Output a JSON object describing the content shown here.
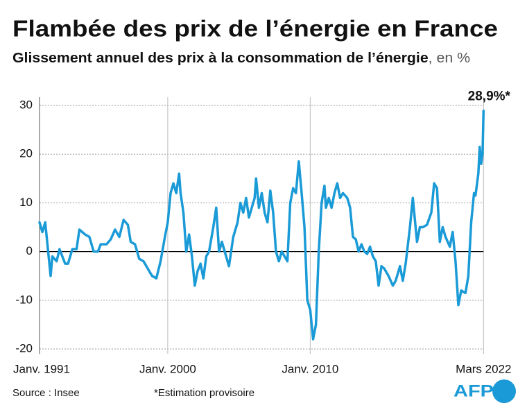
{
  "chart_data": {
    "type": "line",
    "title": "Flambée des prix de l’énergie en France",
    "subtitle": "Glissement annuel des prix à la consommation de l’énergie",
    "subtitle_unit": ", en %",
    "annotation": "28,9%*",
    "source": "Source : Insee",
    "note": "*Estimation provisoire",
    "logo": "AFP",
    "color": "#1a9ad6",
    "xlim": [
      1991,
      2022.2
    ],
    "ylim": [
      -20,
      30
    ],
    "yticks": [
      -20,
      -10,
      0,
      10,
      20,
      30
    ],
    "xticks": [
      {
        "value": 1991,
        "label": "Janv. 1991"
      },
      {
        "value": 2000,
        "label": "Janv. 2000"
      },
      {
        "value": 2010,
        "label": "Janv. 2010"
      },
      {
        "value": 2022.167,
        "label": "Mars 2022"
      }
    ],
    "grid": true,
    "x": [
      1991.0,
      1991.2,
      1991.4,
      1991.78,
      1991.9,
      1992.2,
      1992.4,
      1992.8,
      1993.0,
      1993.3,
      1993.6,
      1993.8,
      1994.2,
      1994.5,
      1994.8,
      1995.1,
      1995.3,
      1995.7,
      1996.0,
      1996.3,
      1996.6,
      1996.9,
      1997.2,
      1997.4,
      1997.7,
      1998.0,
      1998.3,
      1998.6,
      1998.9,
      1999.2,
      1999.5,
      1999.8,
      2000.0,
      2000.2,
      2000.4,
      2000.6,
      2000.8,
      2000.9,
      2001.1,
      2001.3,
      2001.5,
      2001.7,
      2001.9,
      2002.1,
      2002.3,
      2002.5,
      2002.7,
      2002.9,
      2003.2,
      2003.4,
      2003.6,
      2003.8,
      2004.0,
      2004.3,
      2004.6,
      2004.9,
      2005.1,
      2005.3,
      2005.5,
      2005.7,
      2005.9,
      2006.1,
      2006.2,
      2006.4,
      2006.6,
      2006.8,
      2007.0,
      2007.2,
      2007.4,
      2007.6,
      2007.8,
      2008.0,
      2008.2,
      2008.4,
      2008.6,
      2008.8,
      2009.0,
      2009.2,
      2009.4,
      2009.6,
      2009.8,
      2010.0,
      2010.2,
      2010.4,
      2010.6,
      2010.8,
      2011.0,
      2011.1,
      2011.3,
      2011.5,
      2011.7,
      2011.9,
      2012.1,
      2012.3,
      2012.6,
      2012.8,
      2013.0,
      2013.2,
      2013.4,
      2013.6,
      2013.8,
      2014.0,
      2014.2,
      2014.4,
      2014.6,
      2014.8,
      2015.0,
      2015.2,
      2015.5,
      2015.8,
      2016.0,
      2016.3,
      2016.5,
      2016.7,
      2017.0,
      2017.2,
      2017.5,
      2017.7,
      2017.9,
      2018.2,
      2018.5,
      2018.7,
      2018.9,
      2019.1,
      2019.3,
      2019.5,
      2019.8,
      2020.0,
      2020.2,
      2020.4,
      2020.6,
      2020.9,
      2021.1,
      2021.3,
      2021.5,
      2021.6,
      2021.8,
      2021.9,
      2022.0,
      2022.1,
      2022.167
    ],
    "values": [
      6,
      4,
      6,
      -5,
      -1,
      -2,
      0.5,
      -2.5,
      -2.5,
      0.5,
      0.5,
      4.5,
      3.5,
      3,
      0,
      0,
      1.5,
      1.5,
      2.5,
      4.5,
      3,
      6.5,
      5.5,
      2,
      1.5,
      -1.5,
      -2,
      -3.5,
      -5,
      -5.5,
      -2,
      3,
      6,
      12,
      14,
      12,
      16,
      12,
      8,
      0,
      3.5,
      -1,
      -7,
      -4,
      -2.5,
      -5.5,
      -1,
      0,
      5,
      9,
      0,
      2,
      0,
      -3,
      3,
      6,
      10,
      8,
      11,
      7,
      9,
      11,
      15,
      9,
      12,
      8,
      6,
      12.5,
      8,
      0,
      -2,
      0,
      -1,
      -2,
      10,
      13,
      12,
      18.5,
      12,
      5,
      -10,
      -12,
      -18,
      -15,
      0,
      10,
      13.5,
      9,
      11,
      9,
      12,
      14,
      11,
      12,
      11,
      9,
      3,
      2.5,
      0,
      1.5,
      0,
      -0.5,
      1,
      -1,
      -2,
      -7,
      -3,
      -3.5,
      -5,
      -7,
      -6,
      -3,
      -6,
      -2.5,
      5,
      11,
      2,
      5,
      5,
      5.5,
      8,
      14,
      13,
      2,
      5,
      3,
      1,
      4,
      -2,
      -11,
      -8,
      -8.5,
      -5,
      6,
      12,
      11.5,
      16,
      21.5,
      18,
      20,
      28.9
    ]
  }
}
